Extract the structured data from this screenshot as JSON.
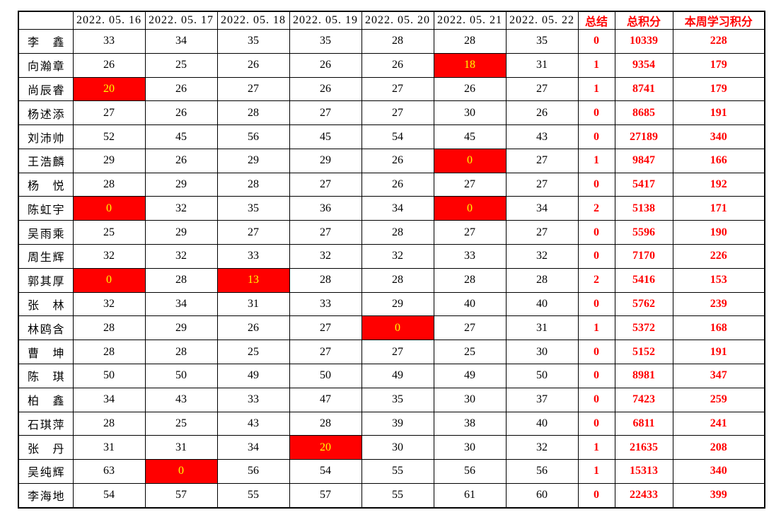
{
  "colors": {
    "background": "#FFFFFF",
    "grid_border": "#000000",
    "accent_text": "#FF0000",
    "highlight_bg": "#FF0000",
    "highlight_text": "#FFFF00",
    "normal_text": "#000000"
  },
  "table": {
    "corner": "",
    "date_headers": [
      "2022. 05. 16",
      "2022. 05. 17",
      "2022. 05. 18",
      "2022. 05. 19",
      "2022. 05. 20",
      "2022. 05. 21",
      "2022. 05. 22"
    ],
    "summary_header": "总结",
    "total_header": "总积分",
    "week_header": "本周学习积分",
    "rows": [
      {
        "name": "李鑫",
        "daily": [
          33,
          34,
          35,
          35,
          28,
          28,
          35
        ],
        "highlighted": [],
        "summary": 0,
        "total": 10339,
        "week": 228
      },
      {
        "name": "向瀚章",
        "daily": [
          26,
          25,
          26,
          26,
          26,
          18,
          31
        ],
        "highlighted": [
          5
        ],
        "summary": 1,
        "total": 9354,
        "week": 179
      },
      {
        "name": "尚辰睿",
        "daily": [
          20,
          26,
          27,
          26,
          27,
          26,
          27
        ],
        "highlighted": [
          0
        ],
        "summary": 1,
        "total": 8741,
        "week": 179
      },
      {
        "name": "杨述添",
        "daily": [
          27,
          26,
          28,
          27,
          27,
          30,
          26
        ],
        "highlighted": [],
        "summary": 0,
        "total": 8685,
        "week": 191
      },
      {
        "name": "刘沛帅",
        "daily": [
          52,
          45,
          56,
          45,
          54,
          45,
          43
        ],
        "highlighted": [],
        "summary": 0,
        "total": 27189,
        "week": 340
      },
      {
        "name": "王浩麟",
        "daily": [
          29,
          26,
          29,
          29,
          26,
          0,
          27
        ],
        "highlighted": [
          5
        ],
        "summary": 1,
        "total": 9847,
        "week": 166
      },
      {
        "name": "杨悦",
        "daily": [
          28,
          29,
          28,
          27,
          26,
          27,
          27
        ],
        "highlighted": [],
        "summary": 0,
        "total": 5417,
        "week": 192
      },
      {
        "name": "陈虹宇",
        "daily": [
          0,
          32,
          35,
          36,
          34,
          0,
          34
        ],
        "highlighted": [
          0,
          5
        ],
        "summary": 2,
        "total": 5138,
        "week": 171
      },
      {
        "name": "吴雨乘",
        "daily": [
          25,
          29,
          27,
          27,
          28,
          27,
          27
        ],
        "highlighted": [],
        "summary": 0,
        "total": 5596,
        "week": 190
      },
      {
        "name": "周生辉",
        "daily": [
          32,
          32,
          33,
          32,
          32,
          33,
          32
        ],
        "highlighted": [],
        "summary": 0,
        "total": 7170,
        "week": 226
      },
      {
        "name": "郭其厚",
        "daily": [
          0,
          28,
          13,
          28,
          28,
          28,
          28
        ],
        "highlighted": [
          0,
          2
        ],
        "summary": 2,
        "total": 5416,
        "week": 153
      },
      {
        "name": "张林",
        "daily": [
          32,
          34,
          31,
          33,
          29,
          40,
          40
        ],
        "highlighted": [],
        "summary": 0,
        "total": 5762,
        "week": 239
      },
      {
        "name": "林鸥含",
        "daily": [
          28,
          29,
          26,
          27,
          0,
          27,
          31
        ],
        "highlighted": [
          4
        ],
        "summary": 1,
        "total": 5372,
        "week": 168
      },
      {
        "name": "曹坤",
        "daily": [
          28,
          28,
          25,
          27,
          27,
          25,
          30
        ],
        "highlighted": [],
        "summary": 0,
        "total": 5152,
        "week": 191
      },
      {
        "name": "陈琪",
        "daily": [
          50,
          50,
          49,
          50,
          49,
          49,
          50
        ],
        "highlighted": [],
        "summary": 0,
        "total": 8981,
        "week": 347
      },
      {
        "name": "柏鑫",
        "daily": [
          34,
          43,
          33,
          47,
          35,
          30,
          37
        ],
        "highlighted": [],
        "summary": 0,
        "total": 7423,
        "week": 259
      },
      {
        "name": "石琪萍",
        "daily": [
          28,
          25,
          43,
          28,
          39,
          38,
          40
        ],
        "highlighted": [],
        "summary": 0,
        "total": 6811,
        "week": 241
      },
      {
        "name": "张丹",
        "daily": [
          31,
          31,
          34,
          20,
          30,
          30,
          32
        ],
        "highlighted": [
          3
        ],
        "summary": 1,
        "total": 21635,
        "week": 208
      },
      {
        "name": "吴纯辉",
        "daily": [
          63,
          0,
          56,
          54,
          55,
          56,
          56
        ],
        "highlighted": [
          1
        ],
        "summary": 1,
        "total": 15313,
        "week": 340
      },
      {
        "name": "李海地",
        "daily": [
          54,
          57,
          55,
          57,
          55,
          61,
          60
        ],
        "highlighted": [],
        "summary": 0,
        "total": 22433,
        "week": 399
      }
    ]
  }
}
